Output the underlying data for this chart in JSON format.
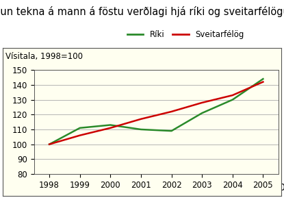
{
  "title": "Þróun tekna á mann á föstu verðlagi hjá ríki og sveitarfélögum",
  "ylabel": "Vísitala, 1998=100",
  "years": [
    1998,
    1999,
    2000,
    2001,
    2002,
    2003,
    2004,
    2005
  ],
  "riki": [
    100,
    111,
    113,
    110,
    109,
    121,
    130,
    144
  ],
  "sveitarfelag": [
    100,
    106,
    111,
    117,
    122,
    128,
    133,
    142
  ],
  "riki_color": "#2a8a2a",
  "sveitarfelag_color": "#cc0000",
  "riki_label": "Ríki",
  "sveitarfelag_label": "Sveitarfélög",
  "fig_bg_color": "#ffffff",
  "plot_bg_color": "#fffff0",
  "ylim": [
    80,
    150
  ],
  "yticks": [
    80,
    90,
    100,
    110,
    120,
    130,
    140,
    150
  ],
  "grid_color": "#aaaaaa",
  "title_fontsize": 10.5,
  "tick_fontsize": 8.5,
  "legend_fontsize": 8.5,
  "ylabel_fontsize": 8.5
}
